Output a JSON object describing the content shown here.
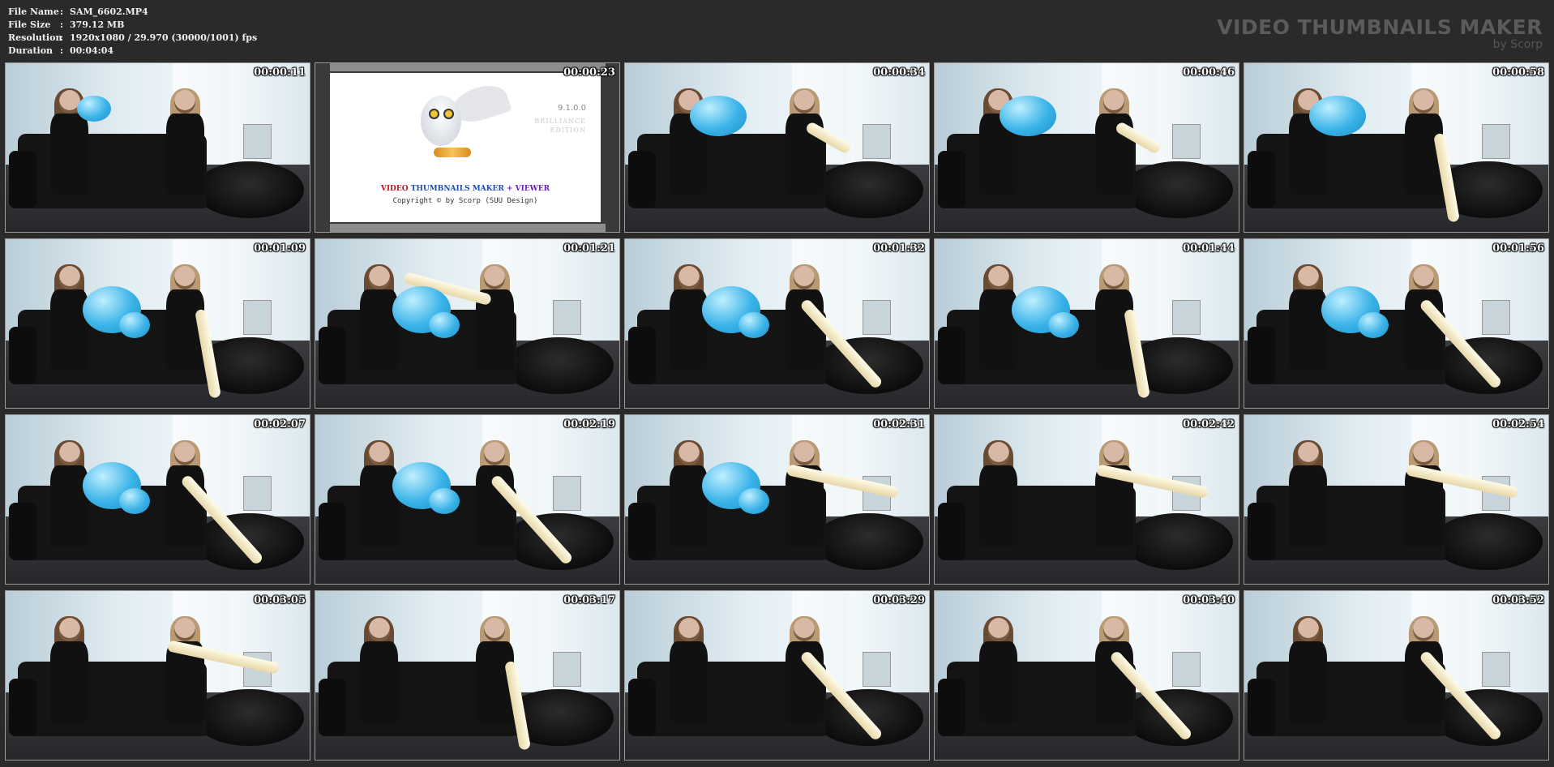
{
  "meta": {
    "rows": [
      {
        "key": "File Name",
        "value": "SAM_6602.MP4"
      },
      {
        "key": "File Size",
        "value": "379.12 MB"
      },
      {
        "key": "Resolution",
        "value": "1920x1080 / 29.970 (30000/1001) fps"
      },
      {
        "key": "Duration",
        "value": "00:04:04"
      }
    ],
    "separator": ":"
  },
  "brand": {
    "title": "VIDEO THUMBNAILS MAKER",
    "subtitle": "by Scorp"
  },
  "splash": {
    "version": "9.1.0.0",
    "edition_line1": "BRILLIANCE",
    "edition_line2": "EDITION",
    "title_part1": "VIDEO ",
    "title_part2": "THUMBNAILS MAKER",
    "title_part3": " + VIEWER",
    "copyright": "Copyright © by Scorp (SUU Design)"
  },
  "thumbnails": [
    {
      "time": "00:00:11",
      "blue": "small",
      "long": "none"
    },
    {
      "time": "00:00:23",
      "splash": true
    },
    {
      "time": "00:00:34",
      "blue": "medium",
      "long": "short"
    },
    {
      "time": "00:00:46",
      "blue": "medium",
      "long": "short"
    },
    {
      "time": "00:00:58",
      "blue": "medium",
      "long": "down"
    },
    {
      "time": "00:01:09",
      "blue": "large",
      "long": "down"
    },
    {
      "time": "00:01:21",
      "blue": "large",
      "long": "up"
    },
    {
      "time": "00:01:32",
      "blue": "large",
      "long": "diag"
    },
    {
      "time": "00:01:44",
      "blue": "large",
      "long": "down"
    },
    {
      "time": "00:01:56",
      "blue": "large",
      "long": "diag"
    },
    {
      "time": "00:02:07",
      "blue": "large",
      "long": "diag"
    },
    {
      "time": "00:02:19",
      "blue": "large",
      "long": "diag"
    },
    {
      "time": "00:02:31",
      "blue": "large",
      "long": "flat"
    },
    {
      "time": "00:02:42",
      "blue": "none",
      "long": "flat"
    },
    {
      "time": "00:02:54",
      "blue": "none",
      "long": "flat"
    },
    {
      "time": "00:03:05",
      "blue": "none",
      "long": "flat"
    },
    {
      "time": "00:03:17",
      "blue": "none",
      "long": "down"
    },
    {
      "time": "00:03:29",
      "blue": "none",
      "long": "diag"
    },
    {
      "time": "00:03:40",
      "blue": "none",
      "long": "diag"
    },
    {
      "time": "00:03:52",
      "blue": "none",
      "long": "diag"
    }
  ],
  "colors": {
    "background": "#2a2a2a",
    "brand_text": "#5b5b5b",
    "balloon_blue": "#3ab3e8",
    "balloon_long": "#efe2b8"
  }
}
